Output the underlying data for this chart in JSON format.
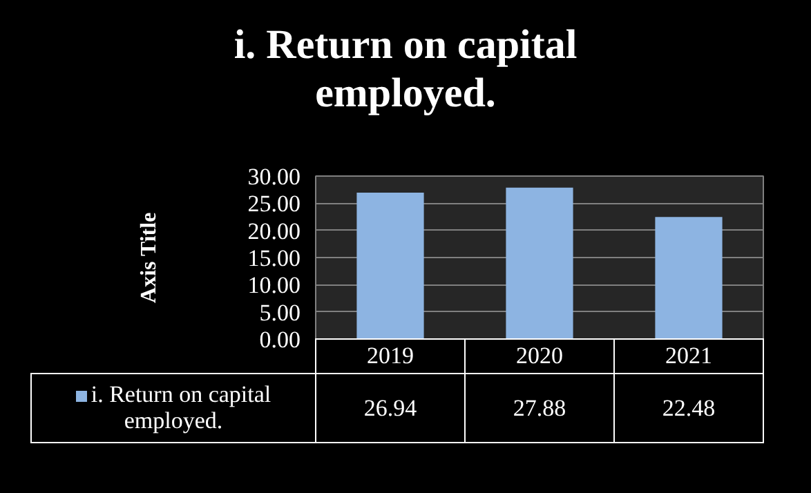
{
  "chart_data": {
    "type": "bar",
    "title": "i. Return on capital employed.",
    "ylabel": "Axis Title",
    "categories": [
      "2019",
      "2020",
      "2021"
    ],
    "series": [
      {
        "name": "i. Return on capital employed.",
        "color": "#8db4e2",
        "values": [
          26.94,
          27.88,
          22.48
        ]
      }
    ],
    "ylim": [
      0,
      30
    ],
    "yticks": [
      {
        "value": 0,
        "label": "0.00"
      },
      {
        "value": 5,
        "label": "5.00"
      },
      {
        "value": 10,
        "label": "10.00"
      },
      {
        "value": 15,
        "label": "15.00"
      },
      {
        "value": 20,
        "label": "20.00"
      },
      {
        "value": 25,
        "label": "25.00"
      },
      {
        "value": 30,
        "label": "30.00"
      }
    ],
    "grid": "y",
    "legend": "bottom",
    "data_labels": true
  }
}
